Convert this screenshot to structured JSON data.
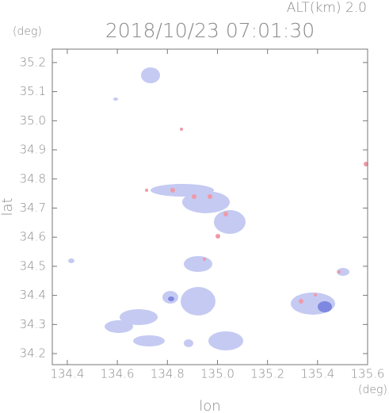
{
  "chart_data": {
    "type": "map",
    "title": "2018/10/23 07:01:30",
    "subtitle": "ALT(km) 2.0",
    "xlabel": "lon",
    "ylabel": "lat",
    "x_unit": "(deg)",
    "y_unit": "(deg)",
    "xlim": [
      134.34,
      135.6
    ],
    "ylim": [
      34.162,
      35.246
    ],
    "xticks": [
      134.4,
      134.6,
      134.8,
      {
        "value": 135,
        "label": "135.0"
      },
      135.2,
      135.4,
      135.6
    ],
    "yticks": [
      34.2,
      34.3,
      34.4,
      34.5,
      34.6,
      34.7,
      34.8,
      34.9,
      {
        "value": 35,
        "label": "35.0"
      },
      35.1,
      35.2
    ]
  }
}
